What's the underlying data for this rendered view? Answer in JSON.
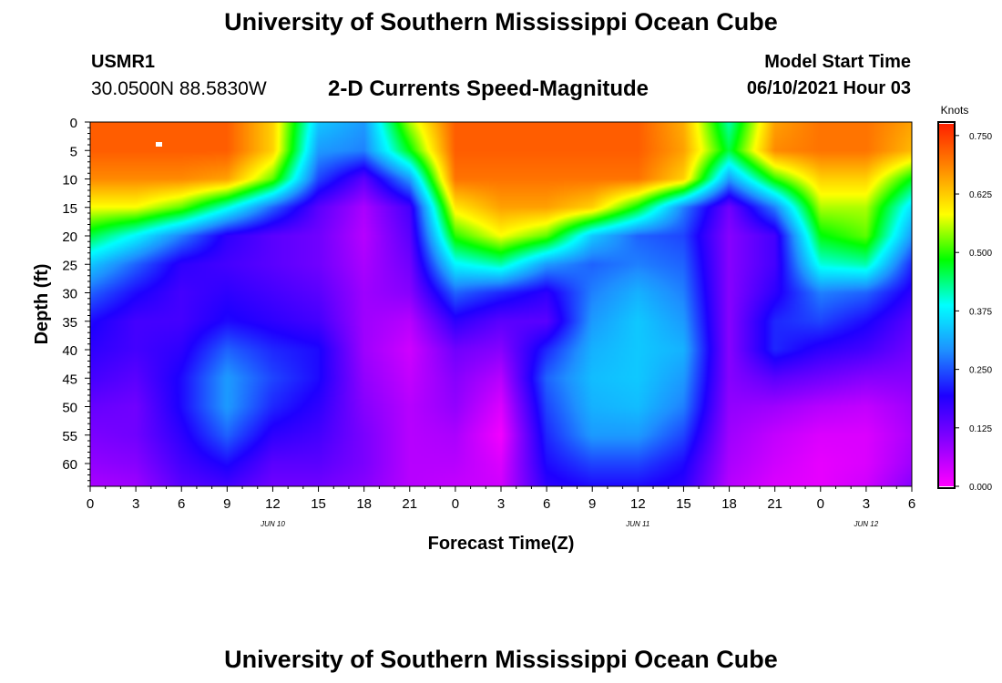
{
  "header": {
    "title": "University of Southern Mississippi Ocean Cube",
    "station": "USMR1",
    "coords": "30.0500N  88.5830W",
    "subtitle": "2-D Currents Speed-Magnitude",
    "model_label": "Model Start Time",
    "model_time": "06/10/2021 Hour 03"
  },
  "footer": {
    "title": "University of Southern Mississippi Ocean Cube"
  },
  "colors": {
    "colormap": [
      "#ff00ff",
      "#8a00ff",
      "#1e00ff",
      "#1e90ff",
      "#00ffff",
      "#00ff00",
      "#ffff00",
      "#ff8c00",
      "#ff2000"
    ]
  },
  "chart_data": {
    "type": "heatmap",
    "title": "2-D Currents Speed-Magnitude",
    "xlabel": "Forecast Time(Z)",
    "ylabel": "Depth (ft)",
    "x_ticks": [
      "0",
      "3",
      "6",
      "9",
      "12",
      "15",
      "18",
      "21",
      "0",
      "3",
      "6",
      "9",
      "12",
      "15",
      "18",
      "21",
      "0",
      "3",
      "6"
    ],
    "x_range_hours": [
      0,
      54
    ],
    "date_labels": [
      {
        "text": "JUN 10",
        "hour": 12
      },
      {
        "text": "JUN 11",
        "hour": 36
      },
      {
        "text": "JUN 12",
        "hour": 51
      }
    ],
    "y_ticks": [
      0,
      5,
      10,
      15,
      20,
      25,
      30,
      35,
      40,
      45,
      50,
      55,
      60
    ],
    "ylim": [
      0,
      64
    ],
    "colorbar": {
      "label": "Knots",
      "min": 0.0,
      "max": 0.775,
      "ticks": [
        "0.000",
        "0.125",
        "0.250",
        "0.375",
        "0.500",
        "0.625",
        "0.750"
      ]
    },
    "grid": {
      "hours": [
        0,
        3,
        6,
        9,
        12,
        15,
        18,
        21,
        24,
        27,
        30,
        33,
        36,
        39,
        42,
        45,
        48,
        51,
        54
      ],
      "depths": [
        0,
        5,
        10,
        15,
        20,
        25,
        30,
        35,
        40,
        45,
        50,
        55,
        60,
        64
      ],
      "values": [
        [
          0.72,
          0.72,
          0.72,
          0.72,
          0.62,
          0.34,
          0.3,
          0.55,
          0.72,
          0.72,
          0.72,
          0.72,
          0.72,
          0.65,
          0.42,
          0.66,
          0.7,
          0.7,
          0.66
        ],
        [
          0.72,
          0.72,
          0.72,
          0.72,
          0.62,
          0.3,
          0.28,
          0.48,
          0.72,
          0.72,
          0.72,
          0.72,
          0.72,
          0.66,
          0.46,
          0.68,
          0.7,
          0.7,
          0.64
        ],
        [
          0.68,
          0.68,
          0.68,
          0.66,
          0.52,
          0.24,
          0.14,
          0.3,
          0.7,
          0.7,
          0.7,
          0.7,
          0.7,
          0.62,
          0.3,
          0.5,
          0.62,
          0.62,
          0.48
        ],
        [
          0.58,
          0.58,
          0.52,
          0.4,
          0.26,
          0.14,
          0.07,
          0.16,
          0.6,
          0.66,
          0.66,
          0.62,
          0.48,
          0.28,
          0.12,
          0.28,
          0.55,
          0.55,
          0.36
        ],
        [
          0.46,
          0.38,
          0.28,
          0.18,
          0.14,
          0.12,
          0.06,
          0.14,
          0.5,
          0.58,
          0.52,
          0.34,
          0.26,
          0.24,
          0.1,
          0.16,
          0.48,
          0.52,
          0.3
        ],
        [
          0.34,
          0.26,
          0.18,
          0.16,
          0.14,
          0.12,
          0.07,
          0.12,
          0.38,
          0.42,
          0.3,
          0.26,
          0.28,
          0.26,
          0.1,
          0.16,
          0.4,
          0.42,
          0.22
        ],
        [
          0.26,
          0.2,
          0.16,
          0.18,
          0.16,
          0.14,
          0.08,
          0.1,
          0.26,
          0.22,
          0.18,
          0.28,
          0.32,
          0.28,
          0.1,
          0.18,
          0.28,
          0.26,
          0.18
        ],
        [
          0.2,
          0.16,
          0.16,
          0.2,
          0.18,
          0.16,
          0.08,
          0.06,
          0.18,
          0.14,
          0.14,
          0.3,
          0.34,
          0.3,
          0.1,
          0.22,
          0.24,
          0.2,
          0.14
        ],
        [
          0.18,
          0.16,
          0.18,
          0.26,
          0.22,
          0.2,
          0.08,
          0.04,
          0.12,
          0.1,
          0.22,
          0.32,
          0.34,
          0.32,
          0.1,
          0.22,
          0.18,
          0.16,
          0.12
        ],
        [
          0.16,
          0.14,
          0.2,
          0.3,
          0.24,
          0.2,
          0.09,
          0.05,
          0.1,
          0.06,
          0.26,
          0.33,
          0.34,
          0.3,
          0.1,
          0.14,
          0.12,
          0.1,
          0.1
        ],
        [
          0.13,
          0.12,
          0.2,
          0.3,
          0.22,
          0.18,
          0.1,
          0.06,
          0.09,
          0.03,
          0.24,
          0.32,
          0.33,
          0.28,
          0.09,
          0.08,
          0.06,
          0.05,
          0.08
        ],
        [
          0.11,
          0.12,
          0.18,
          0.26,
          0.18,
          0.16,
          0.11,
          0.06,
          0.07,
          0.01,
          0.22,
          0.3,
          0.3,
          0.24,
          0.08,
          0.05,
          0.03,
          0.03,
          0.07
        ],
        [
          0.09,
          0.1,
          0.16,
          0.2,
          0.14,
          0.14,
          0.11,
          0.06,
          0.06,
          0.03,
          0.2,
          0.24,
          0.24,
          0.2,
          0.07,
          0.04,
          0.02,
          0.03,
          0.08
        ],
        [
          0.07,
          0.08,
          0.14,
          0.16,
          0.12,
          0.12,
          0.1,
          0.06,
          0.05,
          0.04,
          0.18,
          0.2,
          0.2,
          0.18,
          0.06,
          0.03,
          0.02,
          0.04,
          0.1
        ]
      ]
    }
  }
}
